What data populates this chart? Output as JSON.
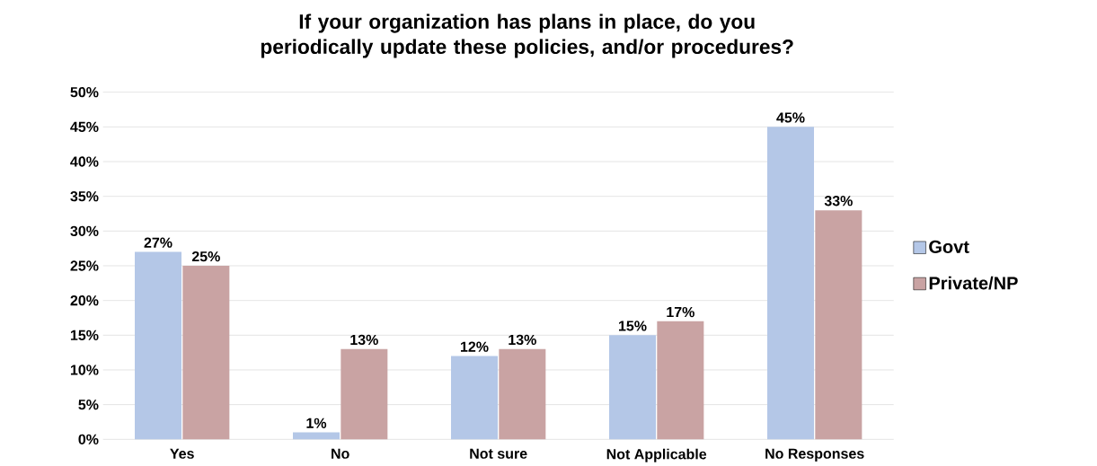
{
  "chart_data": {
    "type": "bar",
    "title": "If your organization has plans in place, do you periodically update these policies, and/or procedures?",
    "categories": [
      "Yes",
      "No",
      "Not sure",
      "Not Applicable",
      "No Responses"
    ],
    "series": [
      {
        "name": "Govt",
        "color": "#b4c7e7",
        "values": [
          27,
          1,
          12,
          15,
          45
        ],
        "value_labels": [
          "27%",
          "1%",
          "12%",
          "15%",
          "45%"
        ]
      },
      {
        "name": "Private/NP",
        "color": "#c9a3a3",
        "values": [
          25,
          13,
          13,
          17,
          33
        ],
        "value_labels": [
          "25%",
          "13%",
          "13%",
          "17%",
          "33%"
        ]
      }
    ],
    "ylim": [
      0,
      50
    ],
    "yticks": [
      {
        "value": 0,
        "label": "0%"
      },
      {
        "value": 5,
        "label": "5%"
      },
      {
        "value": 10,
        "label": "10%"
      },
      {
        "value": 15,
        "label": "15%"
      },
      {
        "value": 20,
        "label": "20%"
      },
      {
        "value": 25,
        "label": "25%"
      },
      {
        "value": 30,
        "label": "30%"
      },
      {
        "value": 35,
        "label": "35%"
      },
      {
        "value": 40,
        "label": "40%"
      },
      {
        "value": 45,
        "label": "45%"
      },
      {
        "value": 50,
        "label": "50%"
      }
    ],
    "grid": "y",
    "legend": "right"
  }
}
